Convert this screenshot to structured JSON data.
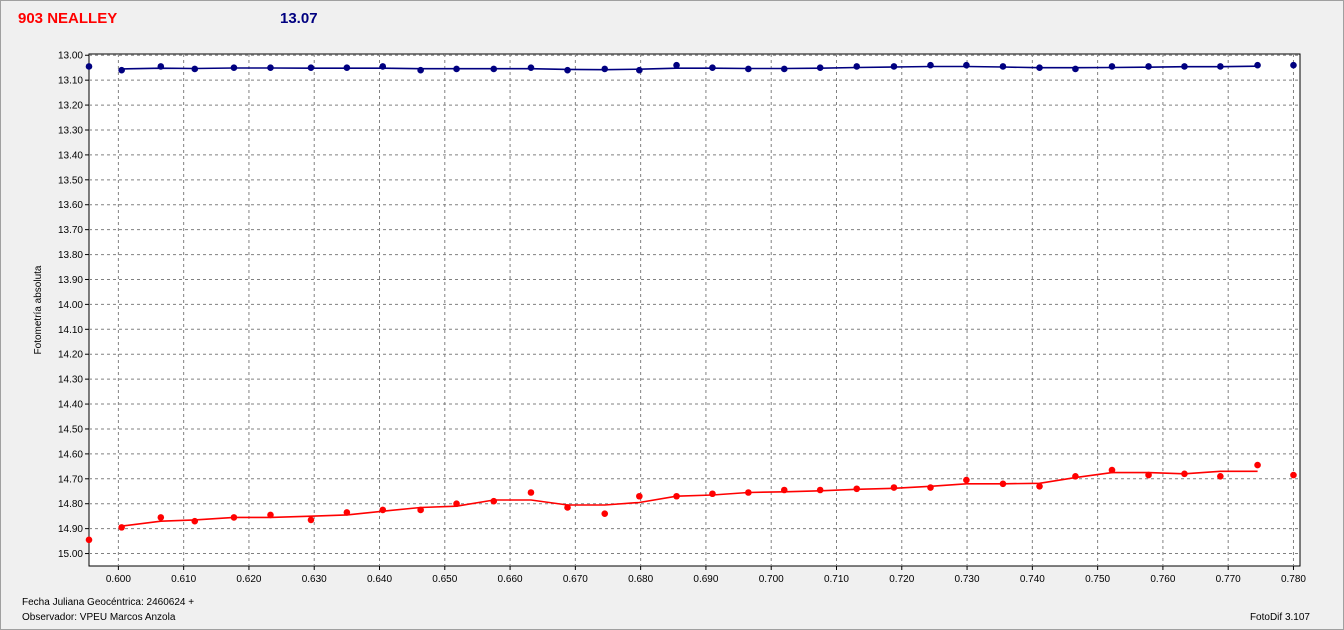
{
  "header": {
    "object_name": "903 NEALLEY",
    "reference_mag": "13.07"
  },
  "footer": {
    "julian_date": "Fecha Juliana Geocéntrica: 2460624 +",
    "observer": "Observador: VPEU Marcos Anzola",
    "software": "FotoDif 3.107"
  },
  "colors": {
    "object_series": "#ff0000",
    "comparison_series": "#000080",
    "grid": "#808080"
  },
  "chart_data": {
    "type": "line",
    "title": "",
    "xlabel": "",
    "ylabel": "Fotometría absoluta",
    "xlim": [
      0.5955,
      0.781
    ],
    "ylim": [
      12.995,
      15.05
    ],
    "y_inverted": true,
    "x_ticks": [
      "0.600",
      "0.610",
      "0.620",
      "0.630",
      "0.640",
      "0.650",
      "0.660",
      "0.670",
      "0.680",
      "0.690",
      "0.700",
      "0.710",
      "0.720",
      "0.730",
      "0.740",
      "0.750",
      "0.760",
      "0.770",
      "0.780"
    ],
    "y_ticks": [
      "13.00",
      "13.10",
      "13.20",
      "13.30",
      "13.40",
      "13.50",
      "13.60",
      "13.70",
      "13.80",
      "13.90",
      "14.00",
      "14.10",
      "14.20",
      "14.30",
      "14.40",
      "14.50",
      "14.60",
      "14.70",
      "14.80",
      "14.90",
      "15.00"
    ],
    "grid": true,
    "series": [
      {
        "name": "",
        "color": "#000080",
        "x": [
          0.5955,
          0.6005,
          0.6065,
          0.6117,
          0.6177,
          0.6233,
          0.6295,
          0.635,
          0.6405,
          0.6463,
          0.6518,
          0.6575,
          0.6632,
          0.6688,
          0.6745,
          0.6798,
          0.6855,
          0.691,
          0.6965,
          0.702,
          0.7075,
          0.7131,
          0.7188,
          0.7244,
          0.7299,
          0.7355,
          0.7411,
          0.7466,
          0.7522,
          0.7578,
          0.7633,
          0.7688,
          0.7745,
          0.78
        ],
        "y": [
          13.045,
          13.06,
          13.045,
          13.055,
          13.05,
          13.05,
          13.05,
          13.05,
          13.045,
          13.06,
          13.055,
          13.055,
          13.05,
          13.06,
          13.055,
          13.06,
          13.04,
          13.05,
          13.055,
          13.055,
          13.05,
          13.045,
          13.045,
          13.04,
          13.04,
          13.045,
          13.05,
          13.055,
          13.045,
          13.045,
          13.045,
          13.045,
          13.04,
          13.04
        ],
        "fit": [
          [
            0.6005,
            13.055
          ],
          [
            0.6065,
            13.052
          ],
          [
            0.6117,
            13.053
          ],
          [
            0.6177,
            13.051
          ],
          [
            0.6233,
            13.051
          ],
          [
            0.6295,
            13.052
          ],
          [
            0.635,
            13.052
          ],
          [
            0.6405,
            13.052
          ],
          [
            0.6463,
            13.054
          ],
          [
            0.6518,
            13.054
          ],
          [
            0.6575,
            13.054
          ],
          [
            0.6632,
            13.054
          ],
          [
            0.6688,
            13.057
          ],
          [
            0.6745,
            13.058
          ],
          [
            0.6798,
            13.056
          ],
          [
            0.6855,
            13.052
          ],
          [
            0.691,
            13.052
          ],
          [
            0.6965,
            13.053
          ],
          [
            0.702,
            13.053
          ],
          [
            0.7075,
            13.052
          ],
          [
            0.7131,
            13.049
          ],
          [
            0.7188,
            13.047
          ],
          [
            0.7244,
            13.045
          ],
          [
            0.7299,
            13.045
          ],
          [
            0.7355,
            13.047
          ],
          [
            0.7411,
            13.05
          ],
          [
            0.7466,
            13.05
          ],
          [
            0.7522,
            13.049
          ],
          [
            0.7578,
            13.048
          ],
          [
            0.7633,
            13.046
          ],
          [
            0.7688,
            13.046
          ],
          [
            0.7745,
            13.044
          ]
        ]
      },
      {
        "name": "",
        "color": "#ff0000",
        "x": [
          0.5955,
          0.6005,
          0.6065,
          0.6117,
          0.6177,
          0.6233,
          0.6295,
          0.635,
          0.6405,
          0.6463,
          0.6518,
          0.6575,
          0.6632,
          0.6688,
          0.6745,
          0.6798,
          0.6855,
          0.691,
          0.6965,
          0.702,
          0.7075,
          0.7131,
          0.7188,
          0.7244,
          0.7299,
          0.7355,
          0.7411,
          0.7466,
          0.7522,
          0.7578,
          0.7633,
          0.7688,
          0.7745,
          0.78
        ],
        "y": [
          14.945,
          14.895,
          14.855,
          14.87,
          14.855,
          14.845,
          14.865,
          14.835,
          14.825,
          14.825,
          14.8,
          14.79,
          14.755,
          14.815,
          14.84,
          14.77,
          14.77,
          14.76,
          14.755,
          14.745,
          14.745,
          14.74,
          14.735,
          14.735,
          14.705,
          14.72,
          14.73,
          14.69,
          14.665,
          14.685,
          14.68,
          14.69,
          14.645,
          14.685
        ],
        "fit": [
          [
            0.6005,
            14.89
          ],
          [
            0.6065,
            14.87
          ],
          [
            0.6117,
            14.865
          ],
          [
            0.6177,
            14.855
          ],
          [
            0.6233,
            14.855
          ],
          [
            0.6295,
            14.85
          ],
          [
            0.635,
            14.845
          ],
          [
            0.6405,
            14.83
          ],
          [
            0.6463,
            14.815
          ],
          [
            0.6518,
            14.81
          ],
          [
            0.6575,
            14.785
          ],
          [
            0.6632,
            14.785
          ],
          [
            0.6688,
            14.805
          ],
          [
            0.6745,
            14.805
          ],
          [
            0.6798,
            14.795
          ],
          [
            0.6855,
            14.77
          ],
          [
            0.691,
            14.765
          ],
          [
            0.6965,
            14.755
          ],
          [
            0.702,
            14.752
          ],
          [
            0.7075,
            14.748
          ],
          [
            0.7131,
            14.742
          ],
          [
            0.7188,
            14.738
          ],
          [
            0.7244,
            14.73
          ],
          [
            0.7299,
            14.72
          ],
          [
            0.7355,
            14.72
          ],
          [
            0.7411,
            14.718
          ],
          [
            0.7466,
            14.695
          ],
          [
            0.7522,
            14.675
          ],
          [
            0.7578,
            14.675
          ],
          [
            0.7633,
            14.68
          ],
          [
            0.7688,
            14.67
          ],
          [
            0.7745,
            14.67
          ]
        ]
      }
    ]
  }
}
